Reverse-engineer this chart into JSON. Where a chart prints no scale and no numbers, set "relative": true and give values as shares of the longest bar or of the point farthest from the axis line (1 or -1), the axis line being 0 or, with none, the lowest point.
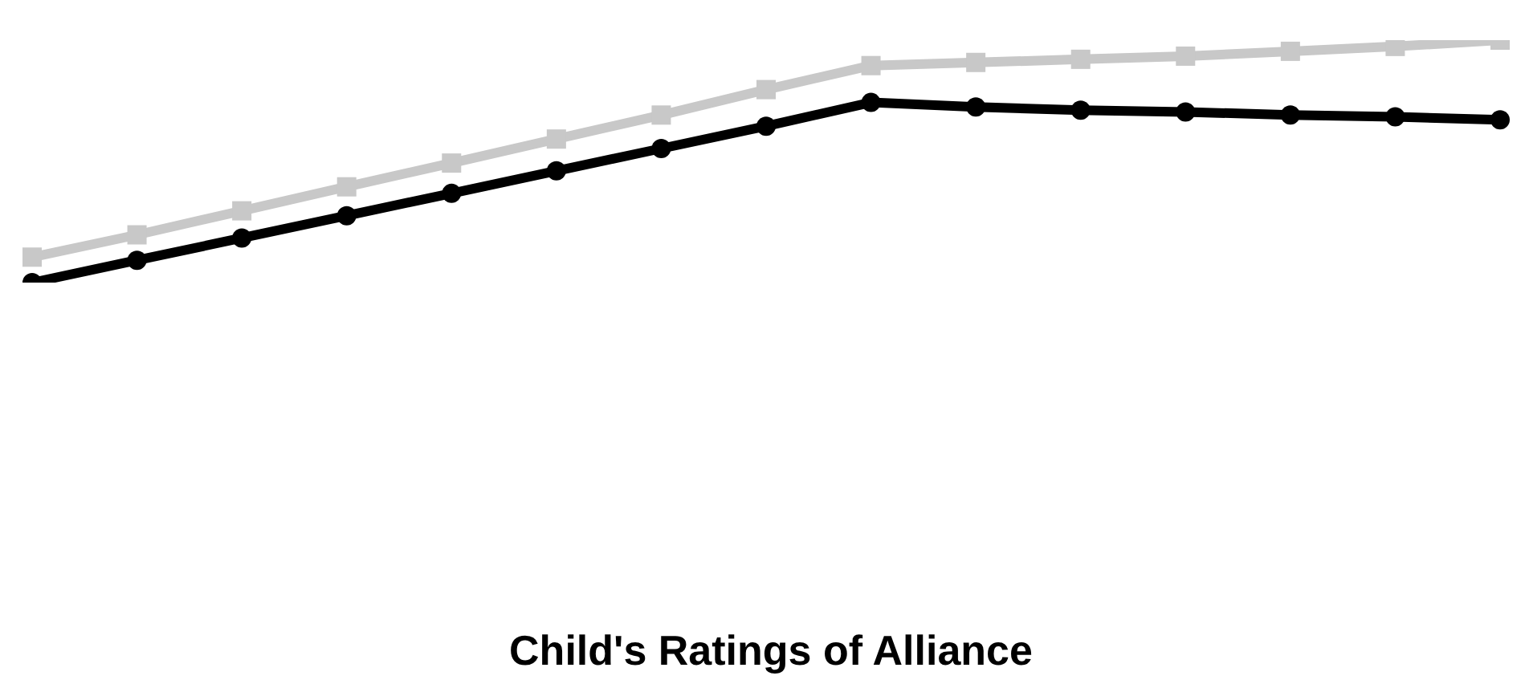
{
  "chart_data": {
    "type": "line",
    "relative": true,
    "annotations": [
      "Child's Ratings of Alliance"
    ],
    "categories": [
      null,
      null,
      null,
      null,
      null,
      null,
      null,
      null,
      null,
      null,
      null,
      null,
      null,
      null,
      null
    ],
    "series": [
      {
        "color": "#c8c8c8",
        "marker": "square",
        "values": [
          0.105,
          0.197,
          0.296,
          0.395,
          0.493,
          0.592,
          0.691,
          0.796,
          0.895,
          0.908,
          0.921,
          0.934,
          0.954,
          0.974,
          1.0
        ]
      },
      {
        "color": "#000000",
        "marker": "circle",
        "values": [
          0,
          0.092,
          0.184,
          0.276,
          0.368,
          0.461,
          0.553,
          0.645,
          0.743,
          0.724,
          0.711,
          0.704,
          0.691,
          0.684,
          0.671
        ]
      }
    ],
    "grid": false,
    "legend": false,
    "line_style": "solid"
  }
}
